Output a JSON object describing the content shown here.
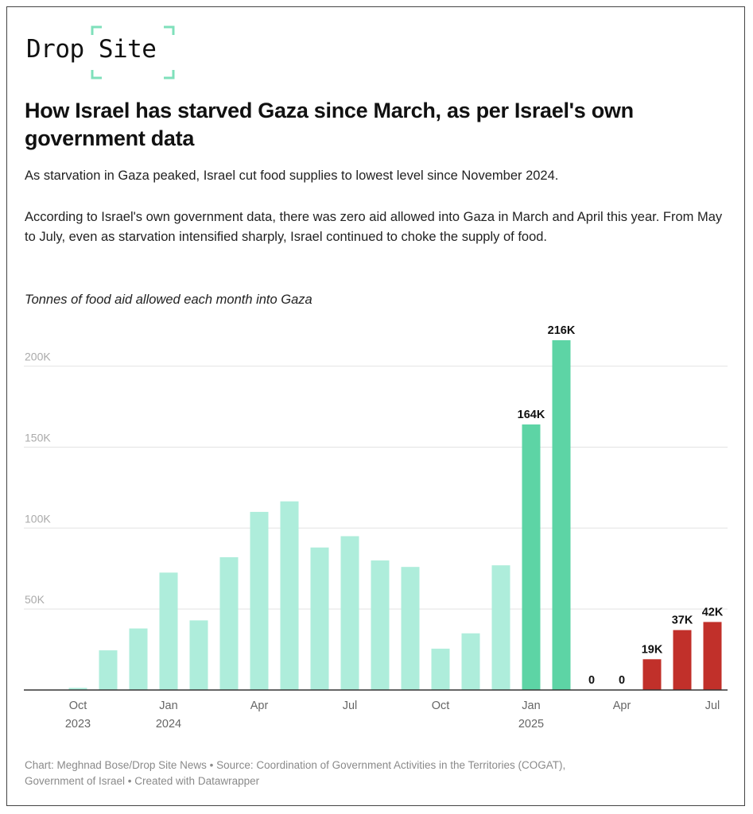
{
  "logo": {
    "text": "Drop Site",
    "bracket_color": "#7fe0bb"
  },
  "title": "How Israel has starved Gaza since March, as per Israel's own government data",
  "subtitle": "As starvation in Gaza peaked, Israel cut food supplies to lowest level since November 2024.",
  "description": "According to Israel's own government data, there was zero aid allowed into Gaza in March and April this year. From May to July, even as starvation intensified sharply, Israel continued to choke the supply of food.",
  "chart_data": {
    "type": "bar",
    "title": "Tonnes of food aid allowed each month into Gaza",
    "xlabel": "",
    "ylabel": "",
    "ylim": [
      0,
      220000
    ],
    "yticks": [
      50000,
      100000,
      150000,
      200000
    ],
    "ytick_labels": [
      "50K",
      "100K",
      "150K",
      "200K"
    ],
    "grid": true,
    "categories": [
      "Oct 2023",
      "Nov 2023",
      "Dec 2023",
      "Jan 2024",
      "Feb 2024",
      "Mar 2024",
      "Apr 2024",
      "May 2024",
      "Jun 2024",
      "Jul 2024",
      "Aug 2024",
      "Sep 2024",
      "Oct 2024",
      "Nov 2024",
      "Dec 2024",
      "Jan 2025",
      "Feb 2025",
      "Mar 2025",
      "Apr 2025",
      "May 2025",
      "Jun 2025",
      "Jul 2025"
    ],
    "values": [
      1300,
      24500,
      38000,
      72500,
      43000,
      82000,
      110000,
      116500,
      88000,
      95000,
      80000,
      76000,
      25500,
      35000,
      77000,
      164000,
      216000,
      0,
      0,
      19000,
      37000,
      42000
    ],
    "data_labels": [
      "",
      "",
      "",
      "",
      "",
      "",
      "",
      "",
      "",
      "",
      "",
      "",
      "",
      "",
      "",
      "164K",
      "216K",
      "0",
      "0",
      "19K",
      "37K",
      "42K"
    ],
    "xtick_labels": [
      {
        "index": 0,
        "line1": "Oct",
        "line2": "2023"
      },
      {
        "index": 3,
        "line1": "Jan",
        "line2": "2024"
      },
      {
        "index": 6,
        "line1": "Apr",
        "line2": ""
      },
      {
        "index": 9,
        "line1": "Jul",
        "line2": ""
      },
      {
        "index": 12,
        "line1": "Oct",
        "line2": ""
      },
      {
        "index": 15,
        "line1": "Jan",
        "line2": "2025"
      },
      {
        "index": 18,
        "line1": "Apr",
        "line2": ""
      },
      {
        "index": 21,
        "line1": "Jul",
        "line2": ""
      }
    ],
    "colors": {
      "base": "#aeeddb",
      "highlight": "#5dd4a5",
      "cut": "#c1302a"
    },
    "bar_color_groups": [
      "base",
      "base",
      "base",
      "base",
      "base",
      "base",
      "base",
      "base",
      "base",
      "base",
      "base",
      "base",
      "base",
      "base",
      "base",
      "highlight",
      "highlight",
      "cut",
      "cut",
      "cut",
      "cut",
      "cut"
    ]
  },
  "footer": {
    "line1": "Chart: Meghnad Bose/Drop Site News • Source: Coordination of Government Activities in the Territories (COGAT),",
    "line2": "Government of Israel • Created with Datawrapper"
  }
}
